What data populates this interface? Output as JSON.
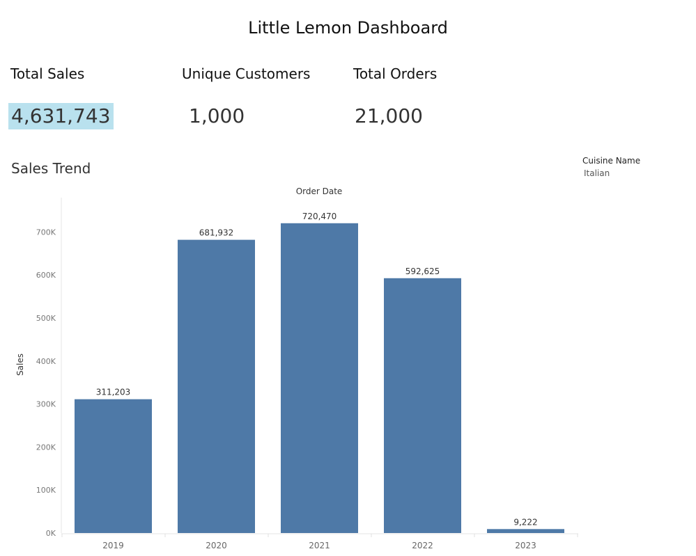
{
  "dashboard": {
    "title": "Little Lemon Dashboard"
  },
  "kpis": [
    {
      "label": "Total Sales",
      "value": "4,631,743"
    },
    {
      "label": "Unique Customers",
      "value": "1,000"
    },
    {
      "label": "Total Orders",
      "value": "21,000"
    }
  ],
  "filter": {
    "title": "Cuisine Name",
    "value": "Italian"
  },
  "chart_data": {
    "type": "bar",
    "title": "Sales Trend",
    "xlabel": "Order Date",
    "ylabel": "Sales",
    "categories": [
      "2019",
      "2020",
      "2021",
      "2022",
      "2023"
    ],
    "values": [
      311203,
      681932,
      720470,
      592625,
      9222
    ],
    "value_labels": [
      "311,203",
      "681,932",
      "720,470",
      "592,625",
      "9,222"
    ],
    "ylim": [
      0,
      780000
    ],
    "yticks": [
      0,
      100000,
      200000,
      300000,
      400000,
      500000,
      600000,
      700000
    ],
    "ytick_labels": [
      "0K",
      "100K",
      "200K",
      "300K",
      "400K",
      "500K",
      "600K",
      "700K"
    ],
    "grid": false,
    "bar_color": "#4e79a7"
  }
}
